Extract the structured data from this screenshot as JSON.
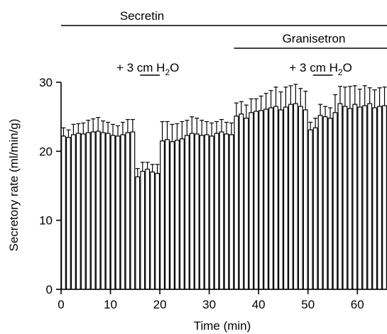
{
  "chart_data": {
    "type": "bar",
    "xlabel": "Time (min)",
    "ylabel": "Secretory rate (ml/min/g)",
    "xlim": [
      0,
      66
    ],
    "ylim": [
      0,
      30
    ],
    "x_ticks": [
      "0",
      "10",
      "20",
      "30",
      "40",
      "50",
      "60"
    ],
    "y_ticks": [
      "0",
      "10",
      "20",
      "30"
    ],
    "grid": false,
    "annotations": [
      {
        "label": "Secretin",
        "x_start": 0,
        "x_end": 66
      },
      {
        "label": "Granisetron",
        "x_start": 35,
        "x_end": 66
      },
      {
        "label": "+ 3 cm H2O",
        "prefix": "+ 3 cm H",
        "sub": "2",
        "suffix": "O",
        "x_start": 16,
        "x_end": 20
      },
      {
        "label": "+ 3 cm H2O",
        "prefix": "+ 3 cm H",
        "sub": "2",
        "suffix": "O",
        "x_start": 51,
        "x_end": 55
      }
    ],
    "x": [
      1,
      2,
      3,
      4,
      5,
      6,
      7,
      8,
      9,
      10,
      11,
      12,
      13,
      14,
      15,
      16,
      17,
      18,
      19,
      20,
      21,
      22,
      23,
      24,
      25,
      26,
      27,
      28,
      29,
      30,
      31,
      32,
      33,
      34,
      35,
      36,
      37,
      38,
      39,
      40,
      41,
      42,
      43,
      44,
      45,
      46,
      47,
      48,
      49,
      50,
      51,
      52,
      53,
      54,
      55,
      56,
      57,
      58,
      59,
      60,
      61,
      62,
      63,
      64,
      65,
      66
    ],
    "values": [
      22.2,
      22.0,
      22.4,
      22.6,
      22.5,
      22.7,
      22.8,
      22.9,
      22.7,
      22.6,
      22.3,
      22.2,
      22.4,
      22.7,
      22.8,
      16.3,
      17.1,
      17.4,
      17.0,
      16.8,
      21.5,
      21.7,
      21.4,
      21.6,
      21.8,
      22.3,
      22.6,
      22.5,
      22.3,
      22.4,
      22.2,
      22.6,
      22.8,
      22.5,
      22.4,
      25.1,
      25.4,
      24.8,
      25.6,
      25.8,
      25.9,
      26.1,
      26.3,
      26.5,
      26.0,
      26.4,
      26.8,
      26.9,
      26.5,
      26.0,
      23.1,
      23.4,
      25.2,
      25.0,
      24.8,
      25.6,
      26.9,
      26.5,
      26.2,
      26.8,
      26.4,
      26.6,
      26.9,
      26.3,
      26.5,
      26.6
    ],
    "errors": [
      1.2,
      1.1,
      1.5,
      1.4,
      1.6,
      1.8,
      1.9,
      2.0,
      1.7,
      1.6,
      1.6,
      1.5,
      1.8,
      1.9,
      1.8,
      1.2,
      1.3,
      1.0,
      1.1,
      1.3,
      2.8,
      2.6,
      2.5,
      2.4,
      2.5,
      2.2,
      2.4,
      2.3,
      2.2,
      1.9,
      1.9,
      1.7,
      1.8,
      1.7,
      1.7,
      1.9,
      1.8,
      1.9,
      2.0,
      1.8,
      2.1,
      2.3,
      2.5,
      2.8,
      2.6,
      2.9,
      2.7,
      2.8,
      2.6,
      2.7,
      1.1,
      1.4,
      1.6,
      1.5,
      1.5,
      2.6,
      2.5,
      2.8,
      3.2,
      2.7,
      2.6,
      2.9,
      2.3,
      2.6,
      2.7,
      2.7
    ]
  }
}
